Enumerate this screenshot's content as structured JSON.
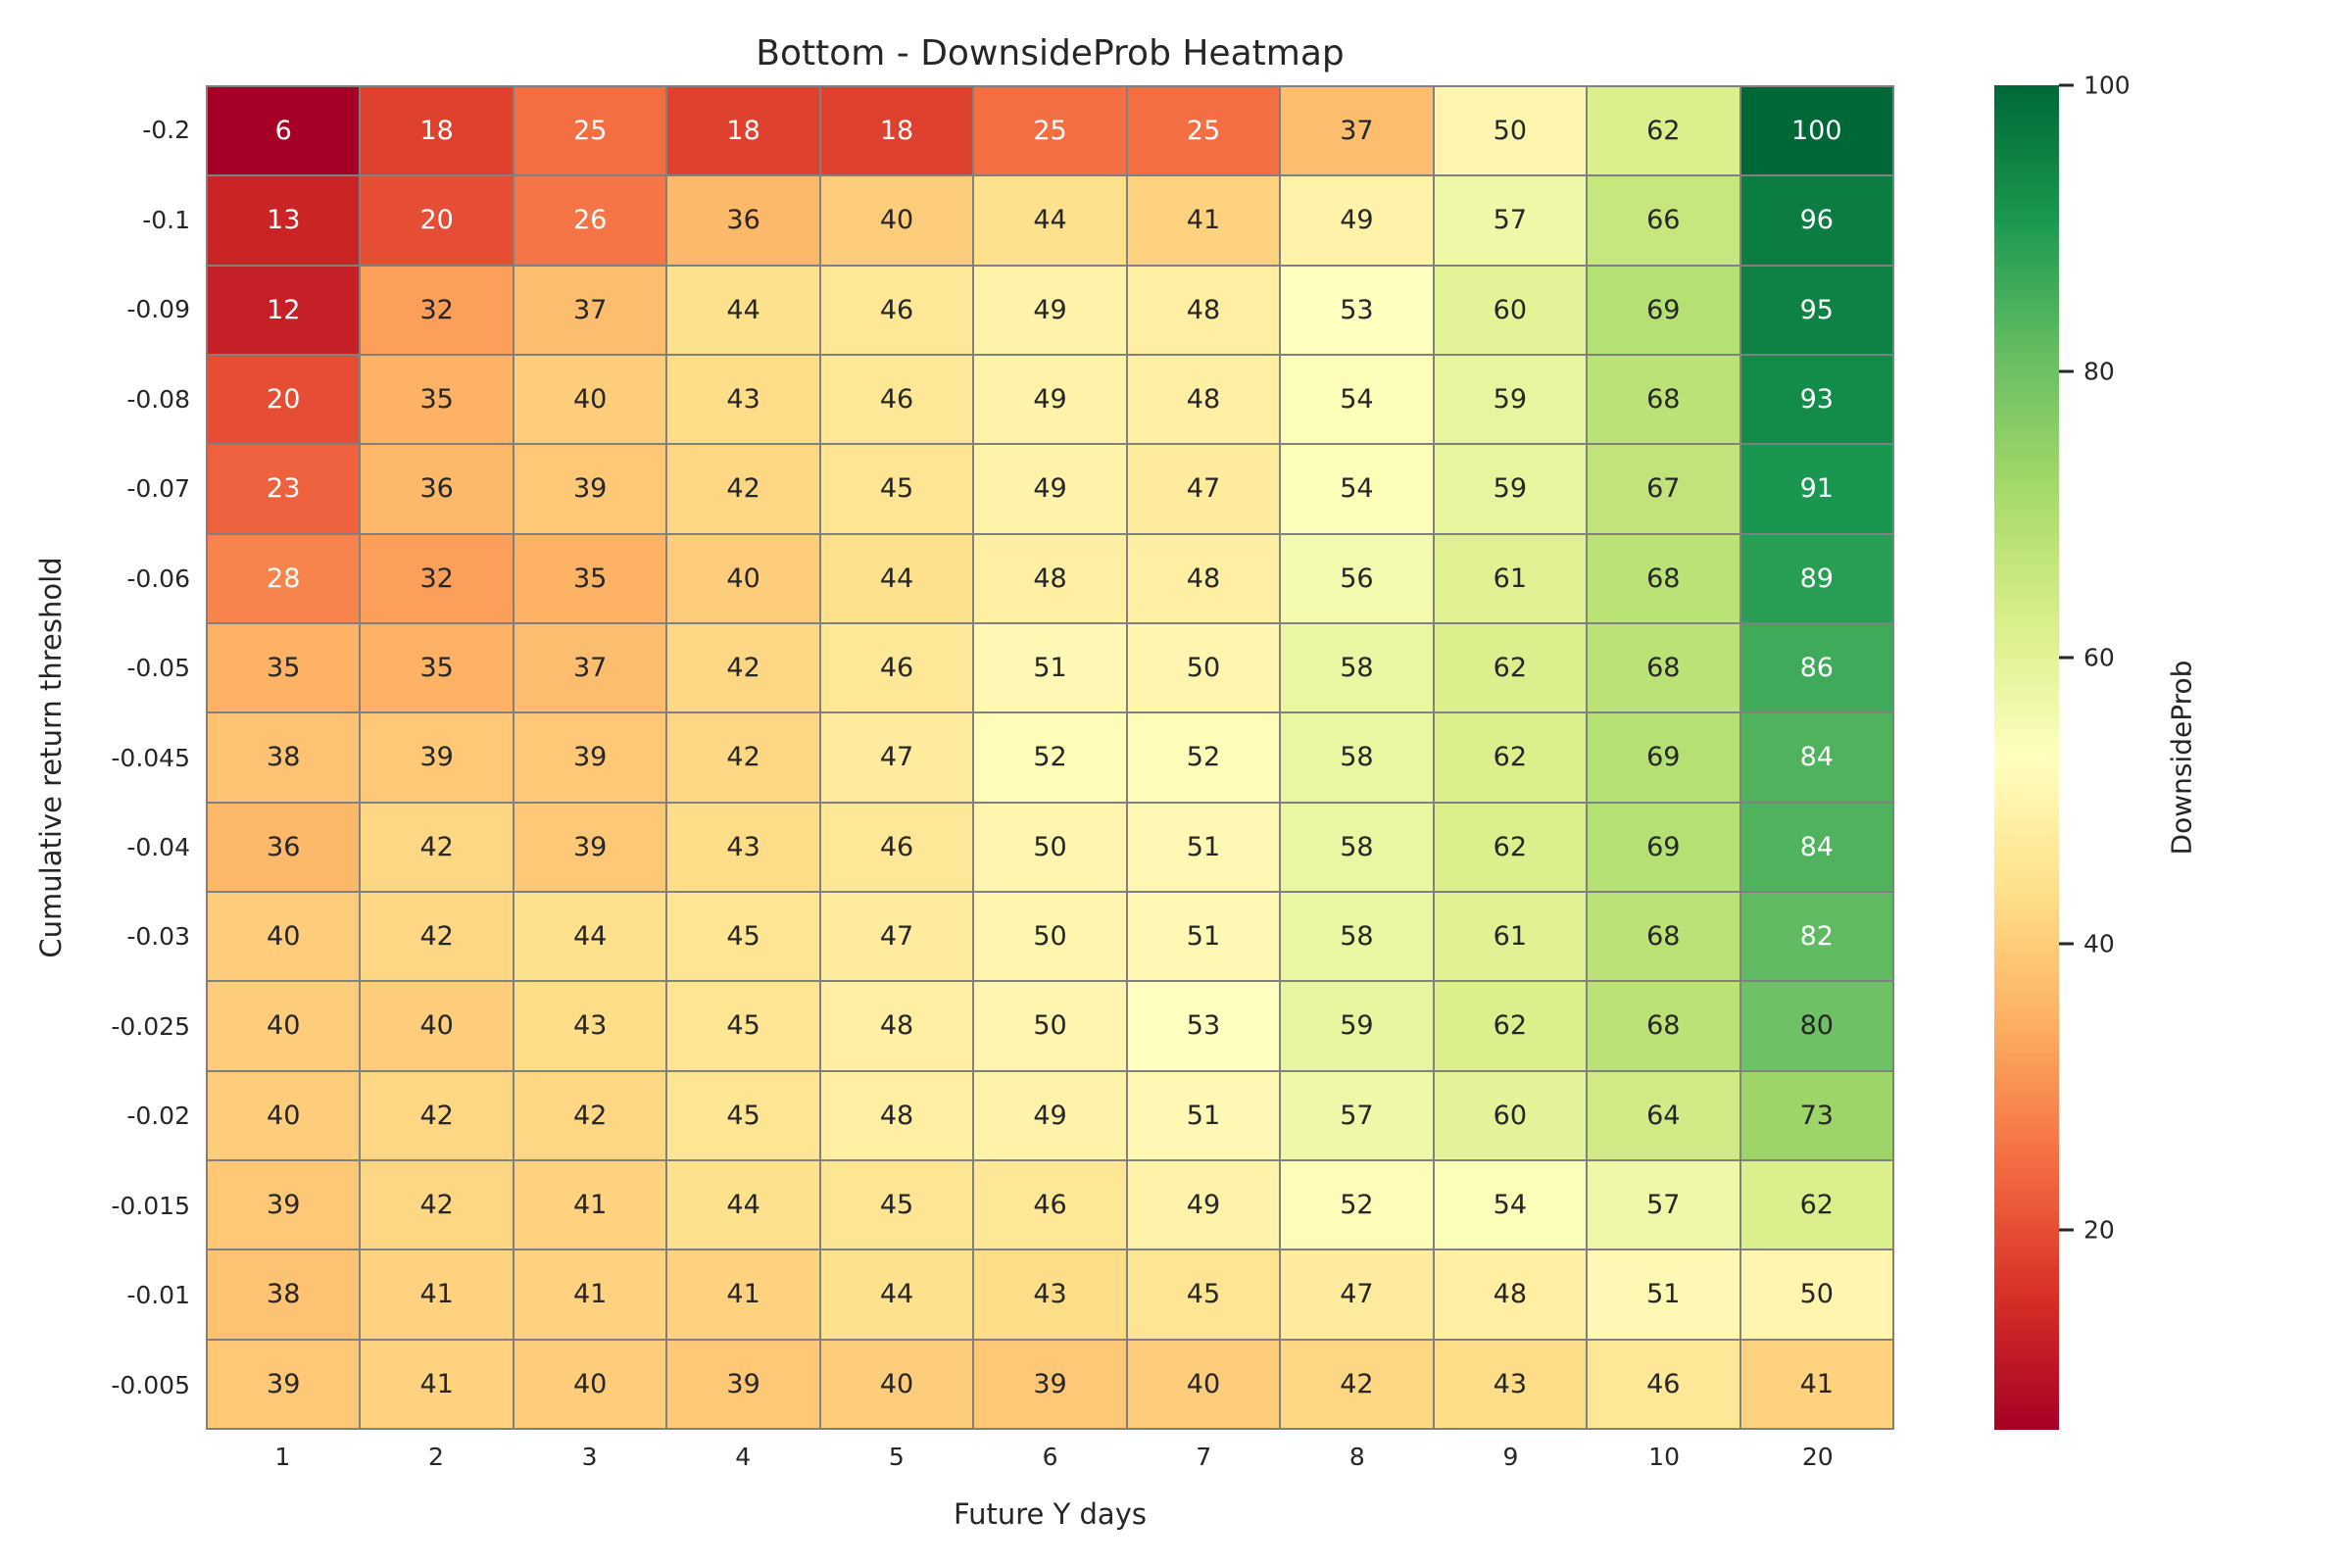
{
  "chart_data": {
    "type": "heatmap",
    "title": "Bottom - DownsideProb Heatmap",
    "xlabel": "Future Y days",
    "ylabel": "Cumulative return threshold",
    "colorbar_label": "DownsideProb",
    "x_categories": [
      "1",
      "2",
      "3",
      "4",
      "5",
      "6",
      "7",
      "8",
      "9",
      "10",
      "20"
    ],
    "y_categories": [
      "-0.2",
      "-0.1",
      "-0.09",
      "-0.08",
      "-0.07",
      "-0.06",
      "-0.05",
      "-0.045",
      "-0.04",
      "-0.03",
      "-0.025",
      "-0.02",
      "-0.015",
      "-0.01",
      "-0.005"
    ],
    "values": [
      [
        6,
        18,
        25,
        18,
        18,
        25,
        25,
        37,
        50,
        62,
        100
      ],
      [
        13,
        20,
        26,
        36,
        40,
        44,
        41,
        49,
        57,
        66,
        96
      ],
      [
        12,
        32,
        37,
        44,
        46,
        49,
        48,
        53,
        60,
        69,
        95
      ],
      [
        20,
        35,
        40,
        43,
        46,
        49,
        48,
        54,
        59,
        68,
        93
      ],
      [
        23,
        36,
        39,
        42,
        45,
        49,
        47,
        54,
        59,
        67,
        91
      ],
      [
        28,
        32,
        35,
        40,
        44,
        48,
        48,
        56,
        61,
        68,
        89
      ],
      [
        35,
        35,
        37,
        42,
        46,
        51,
        50,
        58,
        62,
        68,
        86
      ],
      [
        38,
        39,
        39,
        42,
        47,
        52,
        52,
        58,
        62,
        69,
        84
      ],
      [
        36,
        42,
        39,
        43,
        46,
        50,
        51,
        58,
        62,
        69,
        84
      ],
      [
        40,
        42,
        44,
        45,
        47,
        50,
        51,
        58,
        61,
        68,
        82
      ],
      [
        40,
        40,
        43,
        45,
        48,
        50,
        53,
        59,
        62,
        68,
        80
      ],
      [
        40,
        42,
        42,
        45,
        48,
        49,
        51,
        57,
        60,
        64,
        73
      ],
      [
        39,
        42,
        41,
        44,
        45,
        46,
        49,
        52,
        54,
        57,
        62
      ],
      [
        38,
        41,
        41,
        41,
        44,
        43,
        45,
        47,
        48,
        51,
        50
      ],
      [
        39,
        41,
        40,
        39,
        40,
        39,
        40,
        42,
        43,
        46,
        41
      ]
    ],
    "vmin": 6,
    "vmax": 100,
    "colormap": "RdYlGn",
    "colormap_stops": [
      [
        0.0,
        "#a50026"
      ],
      [
        0.1,
        "#d73027"
      ],
      [
        0.2,
        "#f46d43"
      ],
      [
        0.3,
        "#fdae61"
      ],
      [
        0.4,
        "#fee08b"
      ],
      [
        0.5,
        "#ffffbf"
      ],
      [
        0.6,
        "#d9ef8b"
      ],
      [
        0.7,
        "#a6d96a"
      ],
      [
        0.8,
        "#66bd63"
      ],
      [
        0.9,
        "#1a9850"
      ],
      [
        1.0,
        "#006837"
      ]
    ],
    "colorbar_ticks": [
      100,
      80,
      60,
      40,
      20
    ],
    "grid_line_color": "#808080",
    "annotation_dark_text": "#262626",
    "annotation_light_text": "#ffffff",
    "luminance_threshold": 0.408
  }
}
